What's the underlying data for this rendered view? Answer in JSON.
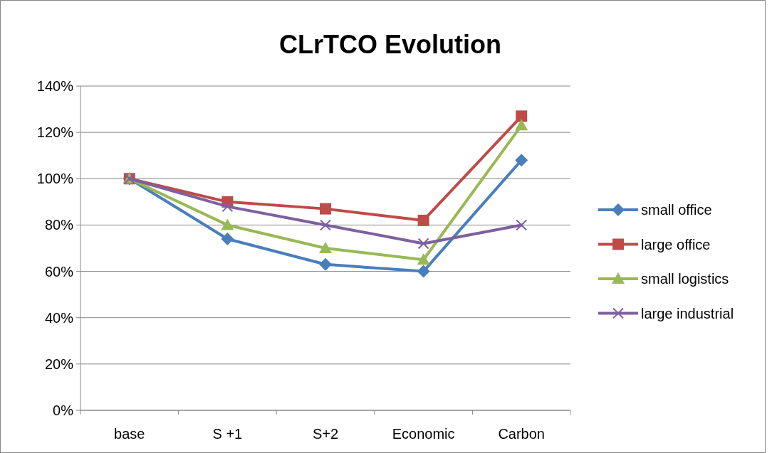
{
  "chart_data": {
    "type": "line",
    "title": "CLrTCO Evolution",
    "categories": [
      "base",
      "S +1",
      "S+2",
      "Economic",
      "Carbon"
    ],
    "series": [
      {
        "name": "small office",
        "color": "#4a7ebb",
        "marker": "diamond",
        "values": [
          100,
          74,
          63,
          60,
          108
        ]
      },
      {
        "name": "large office",
        "color": "#be4b48",
        "marker": "square",
        "values": [
          100,
          90,
          87,
          82,
          127
        ]
      },
      {
        "name": "small logistics",
        "color": "#98b954",
        "marker": "triangle",
        "values": [
          100,
          80,
          70,
          65,
          123
        ]
      },
      {
        "name": "large industrial",
        "color": "#7d60a0",
        "marker": "cross",
        "values": [
          100,
          88,
          80,
          72,
          80
        ]
      }
    ],
    "ylim": [
      0,
      140
    ],
    "yticks": [
      {
        "value": 0,
        "label": "0%"
      },
      {
        "value": 20,
        "label": "20%"
      },
      {
        "value": 40,
        "label": "40%"
      },
      {
        "value": 60,
        "label": "60%"
      },
      {
        "value": 80,
        "label": "80%"
      },
      {
        "value": 100,
        "label": "100%"
      },
      {
        "value": 120,
        "label": "120%"
      },
      {
        "value": 140,
        "label": "140%"
      }
    ],
    "grid": "y",
    "legend": "right",
    "line_style": "solid"
  }
}
